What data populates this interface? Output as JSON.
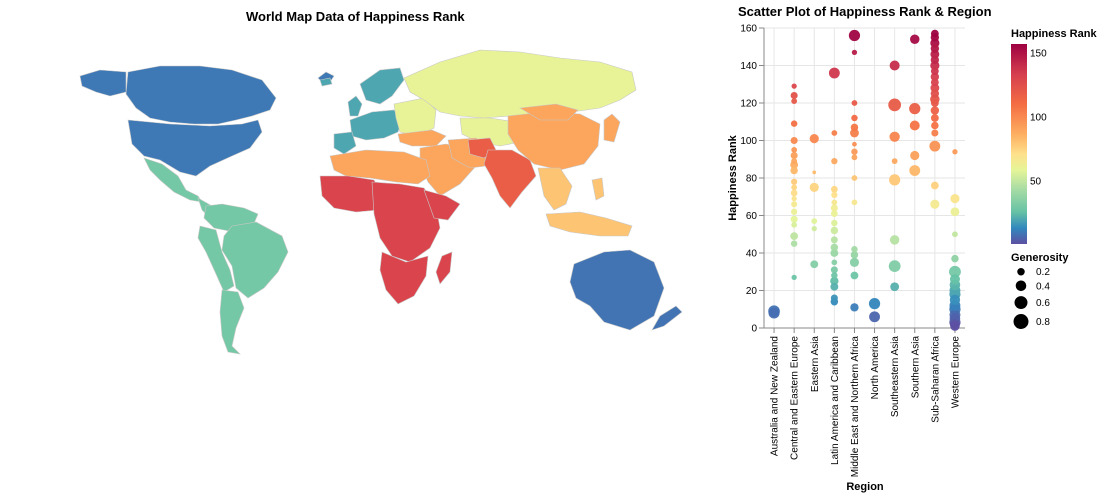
{
  "map": {
    "title": "World Map Data of Happiness Rank"
  },
  "chart_data": [
    {
      "type": "choropleth-map",
      "title": "World Map Data of Happiness Rank",
      "color_field": "Happiness Rank",
      "color_scheme": "spectral",
      "regions": [
        {
          "name": "Australia and New Zealand",
          "rank": 9
        },
        {
          "name": "North America",
          "rank": 10
        },
        {
          "name": "Latin America and Caribbean",
          "rank": 30
        },
        {
          "name": "Western Europe",
          "rank": 20
        },
        {
          "name": "Central and Eastern Europe",
          "rank": 60
        },
        {
          "name": "Middle East and Northern Africa",
          "rank": 90
        },
        {
          "name": "Sub-Saharan Africa",
          "rank": 130
        },
        {
          "name": "Southern Asia",
          "rank": 118
        },
        {
          "name": "Eastern Asia",
          "rank": 90
        },
        {
          "name": "Southeastern Asia",
          "rank": 80
        }
      ]
    },
    {
      "type": "scatter",
      "title": "Scatter Plot of Happiness Rank & Region",
      "xlabel": "Region",
      "ylabel": "Happiness Rank",
      "ylim": [
        0,
        160
      ],
      "yticks": [
        0,
        20,
        40,
        60,
        80,
        100,
        120,
        140,
        160
      ],
      "categories": [
        "Australia and New Zealand",
        "Central and Eastern Europe",
        "Eastern Asia",
        "Latin America and Caribbean",
        "Middle East and Northern Africa",
        "North America",
        "Southeastern Asia",
        "Southern Asia",
        "Sub-Saharan Africa",
        "Western Europe"
      ],
      "color_field": "Happiness Rank",
      "size_field": "Generosity",
      "color_legend": {
        "title": "Happiness Rank",
        "ticks": [
          150,
          100,
          50
        ]
      },
      "size_legend": {
        "title": "Generosity",
        "values": [
          0.2,
          0.4,
          0.6,
          0.8
        ],
        "labels": [
          "0.2",
          "0.4",
          "0.6",
          "0.8"
        ]
      },
      "points": [
        {
          "region": "Australia and New Zealand",
          "rank": 8,
          "generosity": 0.44
        },
        {
          "region": "Australia and New Zealand",
          "rank": 9,
          "generosity": 0.48
        },
        {
          "region": "Central and Eastern Europe",
          "rank": 27,
          "generosity": 0.1
        },
        {
          "region": "Central and Eastern Europe",
          "rank": 45,
          "generosity": 0.15
        },
        {
          "region": "Central and Eastern Europe",
          "rank": 49,
          "generosity": 0.22
        },
        {
          "region": "Central and Eastern Europe",
          "rank": 55,
          "generosity": 0.12
        },
        {
          "region": "Central and Eastern Europe",
          "rank": 58,
          "generosity": 0.18
        },
        {
          "region": "Central and Eastern Europe",
          "rank": 62,
          "generosity": 0.14
        },
        {
          "region": "Central and Eastern Europe",
          "rank": 66,
          "generosity": 0.13
        },
        {
          "region": "Central and Eastern Europe",
          "rank": 69,
          "generosity": 0.1
        },
        {
          "region": "Central and Eastern Europe",
          "rank": 72,
          "generosity": 0.16
        },
        {
          "region": "Central and Eastern Europe",
          "rank": 75,
          "generosity": 0.12
        },
        {
          "region": "Central and Eastern Europe",
          "rank": 78,
          "generosity": 0.14
        },
        {
          "region": "Central and Eastern Europe",
          "rank": 84,
          "generosity": 0.2
        },
        {
          "region": "Central and Eastern Europe",
          "rank": 87,
          "generosity": 0.22
        },
        {
          "region": "Central and Eastern Europe",
          "rank": 89,
          "generosity": 0.13
        },
        {
          "region": "Central and Eastern Europe",
          "rank": 92,
          "generosity": 0.18
        },
        {
          "region": "Central and Eastern Europe",
          "rank": 95,
          "generosity": 0.12
        },
        {
          "region": "Central and Eastern Europe",
          "rank": 100,
          "generosity": 0.18
        },
        {
          "region": "Central and Eastern Europe",
          "rank": 109,
          "generosity": 0.15
        },
        {
          "region": "Central and Eastern Europe",
          "rank": 121,
          "generosity": 0.12
        },
        {
          "region": "Central and Eastern Europe",
          "rank": 124,
          "generosity": 0.18
        },
        {
          "region": "Central and Eastern Europe",
          "rank": 129,
          "generosity": 0.1
        },
        {
          "region": "Eastern Asia",
          "rank": 34,
          "generosity": 0.22
        },
        {
          "region": "Eastern Asia",
          "rank": 53,
          "generosity": 0.1
        },
        {
          "region": "Eastern Asia",
          "rank": 57,
          "generosity": 0.12
        },
        {
          "region": "Eastern Asia",
          "rank": 75,
          "generosity": 0.3
        },
        {
          "region": "Eastern Asia",
          "rank": 83,
          "generosity": 0.05
        },
        {
          "region": "Eastern Asia",
          "rank": 101,
          "generosity": 0.3
        },
        {
          "region": "Latin America and Caribbean",
          "rank": 14,
          "generosity": 0.2
        },
        {
          "region": "Latin America and Caribbean",
          "rank": 16,
          "generosity": 0.18
        },
        {
          "region": "Latin America and Caribbean",
          "rank": 22,
          "generosity": 0.22
        },
        {
          "region": "Latin America and Caribbean",
          "rank": 25,
          "generosity": 0.25
        },
        {
          "region": "Latin America and Caribbean",
          "rank": 28,
          "generosity": 0.15
        },
        {
          "region": "Latin America and Caribbean",
          "rank": 31,
          "generosity": 0.18
        },
        {
          "region": "Latin America and Caribbean",
          "rank": 35,
          "generosity": 0.12
        },
        {
          "region": "Latin America and Caribbean",
          "rank": 40,
          "generosity": 0.22
        },
        {
          "region": "Latin America and Caribbean",
          "rank": 43,
          "generosity": 0.2
        },
        {
          "region": "Latin America and Caribbean",
          "rank": 47,
          "generosity": 0.17
        },
        {
          "region": "Latin America and Caribbean",
          "rank": 52,
          "generosity": 0.2
        },
        {
          "region": "Latin America and Caribbean",
          "rank": 56,
          "generosity": 0.15
        },
        {
          "region": "Latin America and Caribbean",
          "rank": 61,
          "generosity": 0.16
        },
        {
          "region": "Latin America and Caribbean",
          "rank": 64,
          "generosity": 0.18
        },
        {
          "region": "Latin America and Caribbean",
          "rank": 67,
          "generosity": 0.12
        },
        {
          "region": "Latin America and Caribbean",
          "rank": 71,
          "generosity": 0.14
        },
        {
          "region": "Latin America and Caribbean",
          "rank": 74,
          "generosity": 0.16
        },
        {
          "region": "Latin America and Caribbean",
          "rank": 89,
          "generosity": 0.14
        },
        {
          "region": "Latin America and Caribbean",
          "rank": 104,
          "generosity": 0.12
        },
        {
          "region": "Latin America and Caribbean",
          "rank": 136,
          "generosity": 0.42
        },
        {
          "region": "Middle East and Northern Africa",
          "rank": 11,
          "generosity": 0.25
        },
        {
          "region": "Middle East and Northern Africa",
          "rank": 28,
          "generosity": 0.22
        },
        {
          "region": "Middle East and Northern Africa",
          "rank": 35,
          "generosity": 0.3
        },
        {
          "region": "Middle East and Northern Africa",
          "rank": 39,
          "generosity": 0.2
        },
        {
          "region": "Middle East and Northern Africa",
          "rank": 42,
          "generosity": 0.15
        },
        {
          "region": "Middle East and Northern Africa",
          "rank": 67,
          "generosity": 0.12
        },
        {
          "region": "Middle East and Northern Africa",
          "rank": 80,
          "generosity": 0.12
        },
        {
          "region": "Middle East and Northern Africa",
          "rank": 91,
          "generosity": 0.12
        },
        {
          "region": "Middle East and Northern Africa",
          "rank": 94,
          "generosity": 0.15
        },
        {
          "region": "Middle East and Northern Africa",
          "rank": 98,
          "generosity": 0.08
        },
        {
          "region": "Middle East and Northern Africa",
          "rank": 104,
          "generosity": 0.28
        },
        {
          "region": "Middle East and Northern Africa",
          "rank": 107,
          "generosity": 0.2
        },
        {
          "region": "Middle East and Northern Africa",
          "rank": 112,
          "generosity": 0.15
        },
        {
          "region": "Middle East and Northern Africa",
          "rank": 120,
          "generosity": 0.12
        },
        {
          "region": "Middle East and Northern Africa",
          "rank": 147,
          "generosity": 0.1
        },
        {
          "region": "Middle East and Northern Africa",
          "rank": 156,
          "generosity": 0.45
        },
        {
          "region": "North America",
          "rank": 6,
          "generosity": 0.42
        },
        {
          "region": "North America",
          "rank": 13,
          "generosity": 0.45
        },
        {
          "region": "Southeastern Asia",
          "rank": 22,
          "generosity": 0.28
        },
        {
          "region": "Southeastern Asia",
          "rank": 33,
          "generosity": 0.5
        },
        {
          "region": "Southeastern Asia",
          "rank": 47,
          "generosity": 0.32
        },
        {
          "region": "Southeastern Asia",
          "rank": 79,
          "generosity": 0.45
        },
        {
          "region": "Southeastern Asia",
          "rank": 89,
          "generosity": 0.12
        },
        {
          "region": "Southeastern Asia",
          "rank": 102,
          "generosity": 0.38
        },
        {
          "region": "Southeastern Asia",
          "rank": 119,
          "generosity": 0.58
        },
        {
          "region": "Southeastern Asia",
          "rank": 140,
          "generosity": 0.36
        },
        {
          "region": "Southern Asia",
          "rank": 84,
          "generosity": 0.42
        },
        {
          "region": "Southern Asia",
          "rank": 92,
          "generosity": 0.3
        },
        {
          "region": "Southern Asia",
          "rank": 108,
          "generosity": 0.35
        },
        {
          "region": "Southern Asia",
          "rank": 117,
          "generosity": 0.45
        },
        {
          "region": "Southern Asia",
          "rank": 154,
          "generosity": 0.32
        },
        {
          "region": "Sub-Saharan Africa",
          "rank": 66,
          "generosity": 0.3
        },
        {
          "region": "Sub-Saharan Africa",
          "rank": 76,
          "generosity": 0.22
        },
        {
          "region": "Sub-Saharan Africa",
          "rank": 97,
          "generosity": 0.42
        },
        {
          "region": "Sub-Saharan Africa",
          "rank": 104,
          "generosity": 0.18
        },
        {
          "region": "Sub-Saharan Africa",
          "rank": 108,
          "generosity": 0.2
        },
        {
          "region": "Sub-Saharan Africa",
          "rank": 112,
          "generosity": 0.22
        },
        {
          "region": "Sub-Saharan Africa",
          "rank": 116,
          "generosity": 0.25
        },
        {
          "region": "Sub-Saharan Africa",
          "rank": 120,
          "generosity": 0.22
        },
        {
          "region": "Sub-Saharan Africa",
          "rank": 122,
          "generosity": 0.32
        },
        {
          "region": "Sub-Saharan Africa",
          "rank": 125,
          "generosity": 0.25
        },
        {
          "region": "Sub-Saharan Africa",
          "rank": 128,
          "generosity": 0.28
        },
        {
          "region": "Sub-Saharan Africa",
          "rank": 131,
          "generosity": 0.22
        },
        {
          "region": "Sub-Saharan Africa",
          "rank": 134,
          "generosity": 0.25
        },
        {
          "region": "Sub-Saharan Africa",
          "rank": 137,
          "generosity": 0.22
        },
        {
          "region": "Sub-Saharan Africa",
          "rank": 140,
          "generosity": 0.3
        },
        {
          "region": "Sub-Saharan Africa",
          "rank": 143,
          "generosity": 0.25
        },
        {
          "region": "Sub-Saharan Africa",
          "rank": 146,
          "generosity": 0.28
        },
        {
          "region": "Sub-Saharan Africa",
          "rank": 149,
          "generosity": 0.25
        },
        {
          "region": "Sub-Saharan Africa",
          "rank": 152,
          "generosity": 0.3
        },
        {
          "region": "Sub-Saharan Africa",
          "rank": 155,
          "generosity": 0.25
        },
        {
          "region": "Sub-Saharan Africa",
          "rank": 157,
          "generosity": 0.22
        },
        {
          "region": "Western Europe",
          "rank": 1,
          "generosity": 0.32
        },
        {
          "region": "Western Europe",
          "rank": 2,
          "generosity": 0.35
        },
        {
          "region": "Western Europe",
          "rank": 3,
          "generosity": 0.45
        },
        {
          "region": "Western Europe",
          "rank": 5,
          "generosity": 0.4
        },
        {
          "region": "Western Europe",
          "rank": 7,
          "generosity": 0.42
        },
        {
          "region": "Western Europe",
          "rank": 10,
          "generosity": 0.45
        },
        {
          "region": "Western Europe",
          "rank": 12,
          "generosity": 0.42
        },
        {
          "region": "Western Europe",
          "rank": 15,
          "generosity": 0.38
        },
        {
          "region": "Western Europe",
          "rank": 18,
          "generosity": 0.44
        },
        {
          "region": "Western Europe",
          "rank": 20,
          "generosity": 0.42
        },
        {
          "region": "Western Europe",
          "rank": 23,
          "generosity": 0.4
        },
        {
          "region": "Western Europe",
          "rank": 26,
          "generosity": 0.36
        },
        {
          "region": "Western Europe",
          "rank": 30,
          "generosity": 0.5
        },
        {
          "region": "Western Europe",
          "rank": 37,
          "generosity": 0.2
        },
        {
          "region": "Western Europe",
          "rank": 50,
          "generosity": 0.12
        },
        {
          "region": "Western Europe",
          "rank": 62,
          "generosity": 0.28
        },
        {
          "region": "Western Europe",
          "rank": 69,
          "generosity": 0.3
        },
        {
          "region": "Western Europe",
          "rank": 94,
          "generosity": 0.1
        }
      ]
    }
  ]
}
